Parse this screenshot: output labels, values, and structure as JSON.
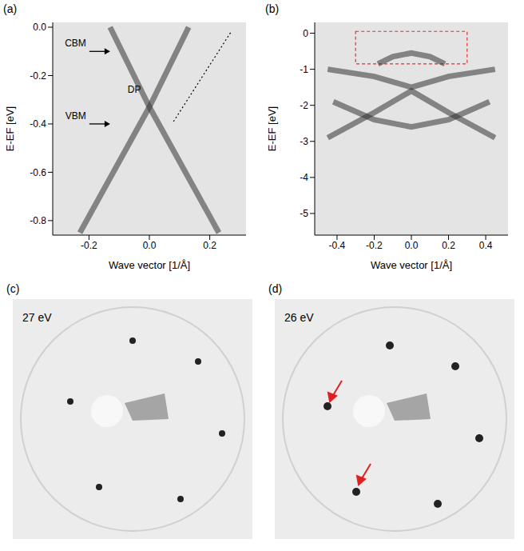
{
  "chart_data": [
    {
      "type": "line",
      "title": "(a)",
      "xlabel": "Wave vector [1/Å]",
      "ylabel": "E-EF [eV]",
      "xlim": [
        -0.32,
        0.32
      ],
      "xticks": [
        -0.2,
        {
          "value": 0,
          "label": "0.0"
        },
        0.2
      ],
      "ylim": [
        -0.86,
        0.02
      ],
      "yticks": [
        {
          "value": 0,
          "label": "0.0"
        },
        -0.2,
        -0.4,
        -0.6,
        -0.8
      ],
      "series": [
        {
          "color": "#333333",
          "x": [
            -0.13,
            0
          ],
          "values": [
            0,
            -0.33
          ]
        },
        {
          "color": "#333333",
          "x": [
            0,
            0.13
          ],
          "values": [
            -0.33,
            0
          ]
        },
        {
          "color": "#333333",
          "x": [
            -0.23,
            0
          ],
          "values": [
            -0.85,
            -0.33
          ]
        },
        {
          "color": "#333333",
          "x": [
            0,
            0.23
          ],
          "values": [
            -0.33,
            -0.85
          ]
        },
        {
          "color": "#000000",
          "line_style": "dotted",
          "x": [
            0.08,
            0.27
          ],
          "values": [
            -0.39,
            -0.02
          ]
        }
      ],
      "arrows": [
        {
          "text": "CBM",
          "x": -0.13,
          "y": -0.1
        },
        {
          "text": "VBM",
          "x": -0.13,
          "y": -0.4
        }
      ],
      "texts": [
        {
          "text": "DP",
          "x": -0.05,
          "y": -0.27
        }
      ]
    },
    {
      "type": "line",
      "title": "(b)",
      "xlabel": "Wave vector [1/Å]",
      "ylabel": "E-EF [eV]",
      "xlim": [
        -0.52,
        0.52
      ],
      "xticks": [
        -0.4,
        -0.2,
        {
          "value": 0,
          "label": "0.0"
        },
        0.2,
        0.4
      ],
      "ylim": [
        -5.6,
        0.3
      ],
      "yticks": [
        0,
        -1,
        -2,
        -3,
        -4,
        -5
      ],
      "series": [
        {
          "color": "#333333",
          "x": [
            -0.18,
            -0.1,
            0,
            0.1,
            0.18
          ],
          "values": [
            -0.85,
            -0.65,
            -0.55,
            -0.65,
            -0.85
          ]
        },
        {
          "color": "#333333",
          "x": [
            -0.45,
            -0.2,
            0,
            0.2,
            0.45
          ],
          "values": [
            -1.0,
            -1.2,
            -1.5,
            -1.2,
            -1.0
          ]
        },
        {
          "color": "#333333",
          "x": [
            -0.45,
            -0.2,
            0,
            0.2,
            0.45
          ],
          "values": [
            -2.9,
            -2.2,
            -1.6,
            -2.2,
            -2.9
          ]
        },
        {
          "color": "#333333",
          "x": [
            -0.42,
            -0.2,
            0,
            0.2,
            0.42
          ],
          "values": [
            -1.9,
            -2.4,
            -2.6,
            -2.4,
            -1.9
          ]
        }
      ],
      "highlight_box": {
        "xlim": [
          -0.3,
          0.3
        ],
        "ylim": [
          -0.85,
          0.05
        ],
        "color": "#e03030"
      }
    }
  ],
  "images": [
    {
      "label": "(c)",
      "text": "27 eV"
    },
    {
      "label": "(d)",
      "text": "26 eV"
    }
  ]
}
